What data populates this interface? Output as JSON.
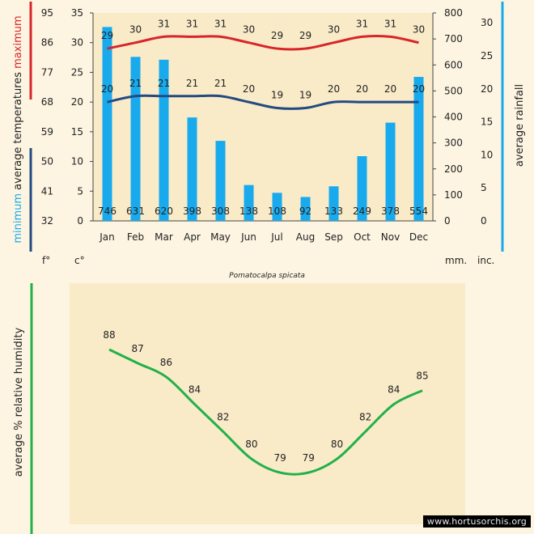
{
  "chart_data": [
    {
      "type": "bar",
      "caption": "Pomatocalpa spicata",
      "categories": [
        "Jan",
        "Feb",
        "Mar",
        "Apr",
        "May",
        "Jun",
        "Jul",
        "Aug",
        "Sep",
        "Oct",
        "Nov",
        "Dec"
      ],
      "series": [
        {
          "name": "average rainfall",
          "unit": "mm.",
          "type": "bar",
          "color": "#19aaee",
          "values": [
            746,
            631,
            620,
            398,
            308,
            138,
            108,
            92,
            133,
            249,
            378,
            554
          ]
        },
        {
          "name": "maximum",
          "unit": "c°",
          "type": "line",
          "color": "#d8252a",
          "values": [
            29,
            30,
            31,
            31,
            31,
            30,
            29,
            29,
            30,
            31,
            31,
            30
          ]
        },
        {
          "name": "minimum",
          "unit": "c°",
          "type": "line",
          "color": "#244a82",
          "values": [
            20,
            21,
            21,
            21,
            21,
            20,
            19,
            19,
            20,
            20,
            20,
            20
          ]
        }
      ],
      "axes": {
        "celsius": {
          "unit": "c°",
          "range": [
            0,
            35
          ],
          "ticks": [
            0,
            5,
            10,
            15,
            20,
            25,
            30,
            35
          ]
        },
        "fahrenheit": {
          "unit": "f°",
          "ticks": [
            32,
            41,
            50,
            59,
            68,
            77,
            86,
            95
          ]
        },
        "rainfall_mm": {
          "unit": "mm.",
          "range": [
            0,
            800
          ],
          "ticks": [
            0,
            100,
            200,
            300,
            400,
            500,
            600,
            700,
            800
          ]
        },
        "rainfall_in": {
          "unit": "inc.",
          "ticks": [
            0,
            5,
            10,
            15,
            20,
            25,
            30
          ]
        }
      },
      "ylabel_left_prefix": "minimum",
      "ylabel_left_main": "average  temperatures",
      "ylabel_left_suffix": "maximum",
      "ylabel_right": "average rainfall",
      "unit_labels": {
        "f": "f°",
        "c": "c°",
        "mm": "mm.",
        "inc": "inc."
      }
    },
    {
      "type": "line",
      "categories": [
        "Jan",
        "Feb",
        "Mar",
        "Apr",
        "May",
        "Jun",
        "Jul",
        "Aug",
        "Sep",
        "Oct",
        "Nov",
        "Dec"
      ],
      "series": [
        {
          "name": "average % relative humidity",
          "color": "#22b04a",
          "values": [
            88,
            87,
            86,
            84,
            82,
            80,
            79,
            79,
            80,
            82,
            84,
            85
          ]
        }
      ],
      "ylabel": "average %  relative humidity"
    }
  ],
  "colors": {
    "background": "#fdf5e2",
    "panel": "#f9ebc8",
    "red": "#d8252a",
    "navy": "#244a82",
    "blue": "#19aaee",
    "green": "#22b04a"
  },
  "watermark": "www.hortusorchis.org"
}
